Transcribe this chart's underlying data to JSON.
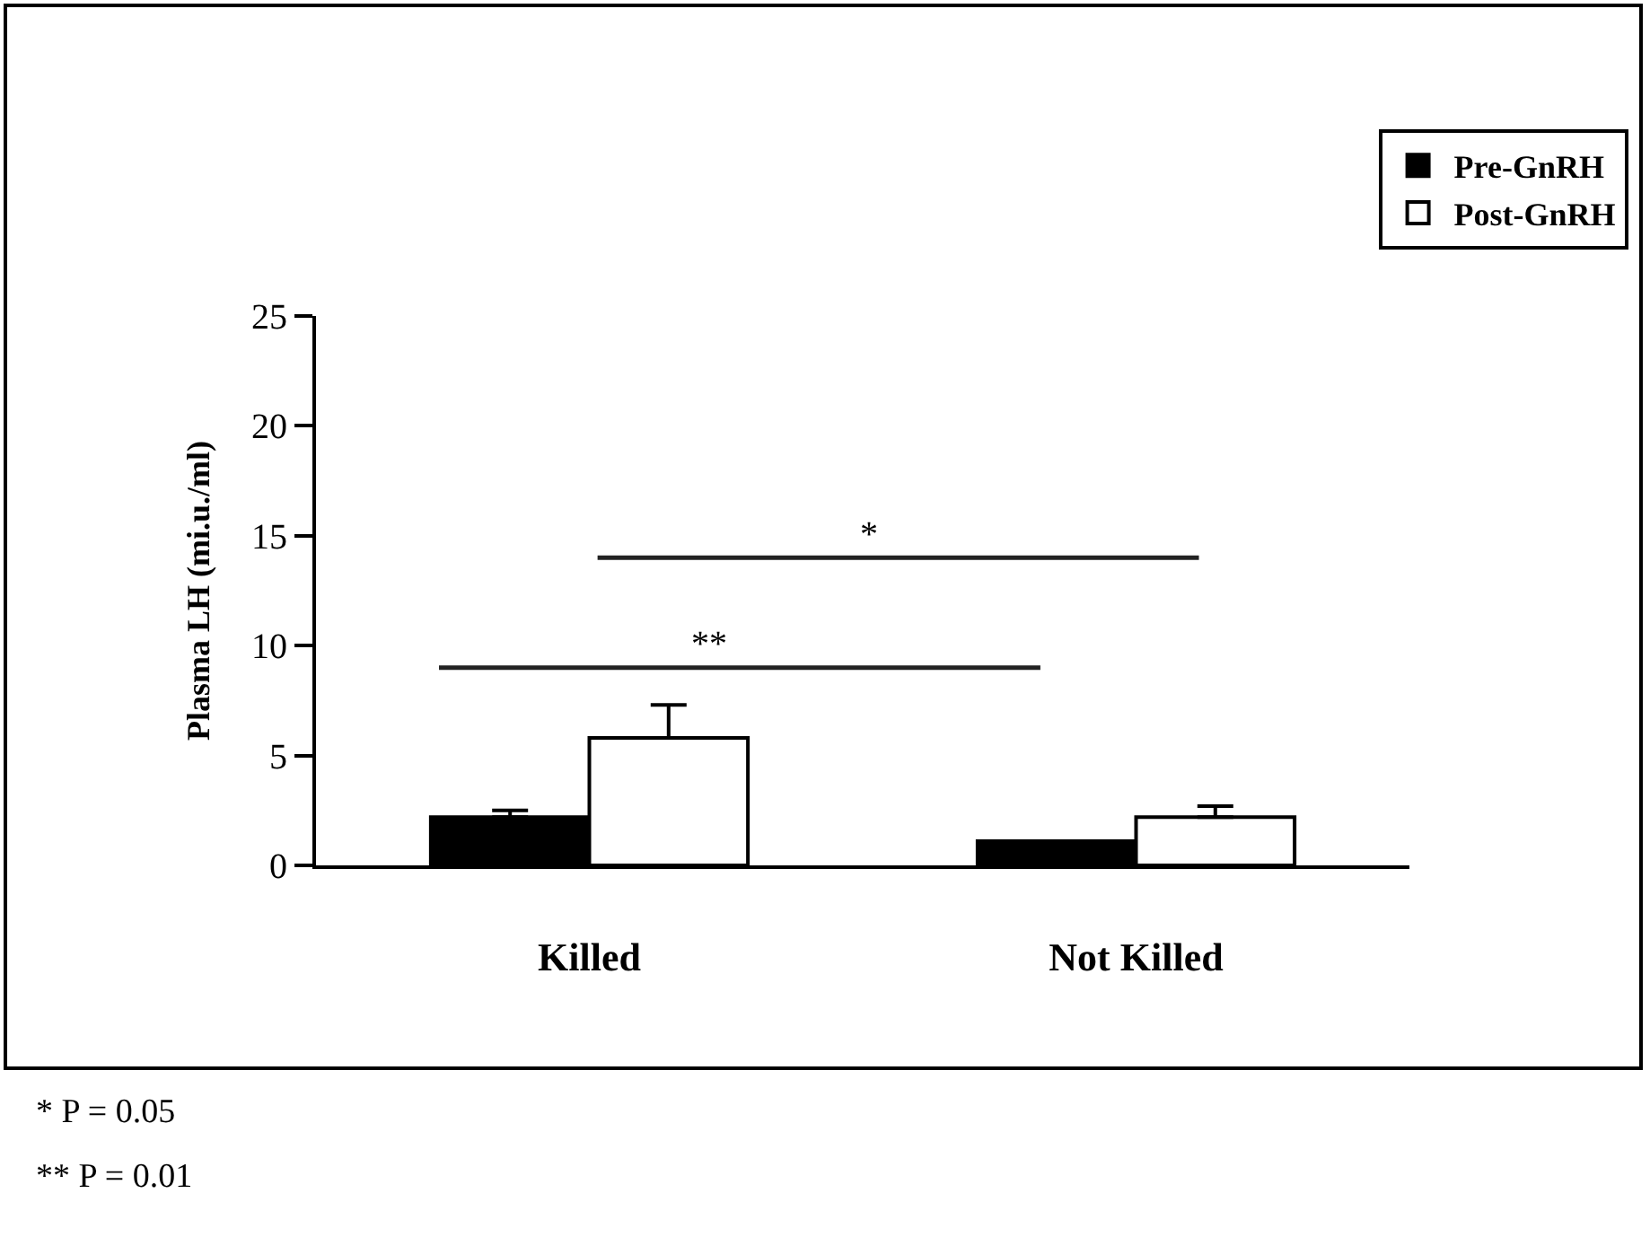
{
  "chart_data": {
    "type": "bar",
    "ylabel": "Plasma LH (mi.u./ml)",
    "categories": [
      "Killed",
      "Not Killed"
    ],
    "series": [
      {
        "name": "Pre-GnRH",
        "color": "#000000",
        "values": [
          2.2,
          1.1
        ],
        "errors": [
          [
            2.2,
            2.5
          ],
          null
        ]
      },
      {
        "name": "Post-GnRH",
        "color": "#ffffff",
        "values": [
          5.8,
          2.2
        ],
        "errors": [
          [
            5.8,
            7.3
          ],
          [
            2.2,
            2.7
          ]
        ]
      }
    ],
    "ylim": [
      0,
      25
    ],
    "yticks": [
      0,
      5,
      10,
      15,
      20,
      25
    ],
    "grid": false,
    "legend": "top right",
    "annotations": [
      "*",
      "**",
      "* P = 0.05",
      "** P = 0.01"
    ]
  }
}
